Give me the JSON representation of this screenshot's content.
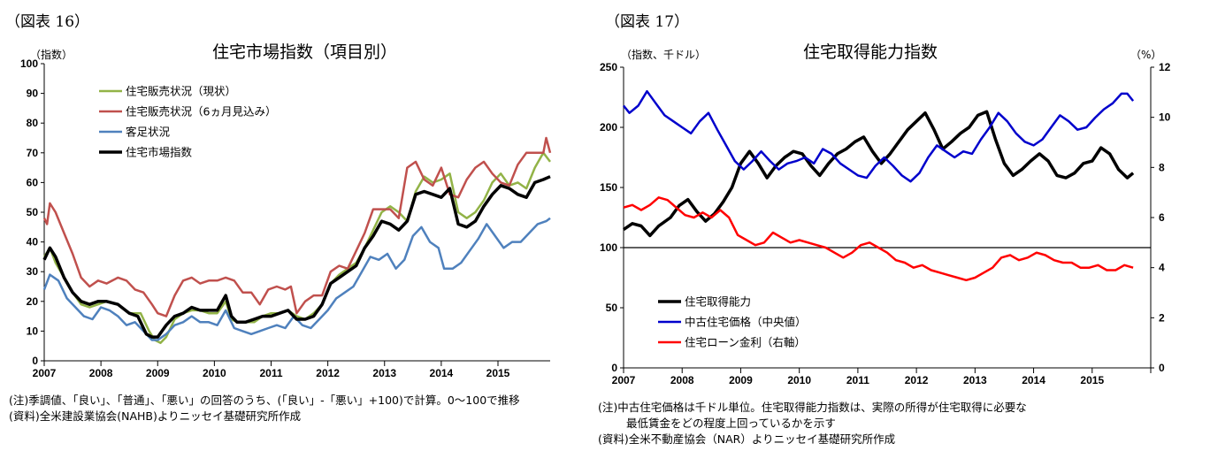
{
  "chart_data": [
    {
      "id": "fig16",
      "figure_label": "（図表 16）",
      "type": "line",
      "title": "住宅市場指数（項目別）",
      "ylabel": "（指数）",
      "ylim": [
        0,
        100
      ],
      "yticks": [
        0,
        10,
        20,
        30,
        40,
        50,
        60,
        70,
        80,
        90,
        100
      ],
      "xlim": [
        2007,
        2015.92
      ],
      "xticks": [
        "2007",
        "2008",
        "2009",
        "2010",
        "2011",
        "2012",
        "2013",
        "2014",
        "2015"
      ],
      "grid": false,
      "legend_position": "top-left",
      "series": [
        {
          "name": "住宅販売状況（現状）",
          "color": "#92b347",
          "width": 2.5,
          "x": [
            2007,
            2007.1,
            2007.2,
            2007.35,
            2007.5,
            2007.65,
            2007.8,
            2007.95,
            2008.1,
            2008.3,
            2008.5,
            2008.7,
            2008.85,
            2008.95,
            2009.05,
            2009.15,
            2009.3,
            2009.45,
            2009.6,
            2009.75,
            2009.9,
            2010.05,
            2010.2,
            2010.3,
            2010.4,
            2010.55,
            2010.7,
            2010.85,
            2011,
            2011.15,
            2011.3,
            2011.45,
            2011.6,
            2011.75,
            2011.9,
            2012.05,
            2012.2,
            2012.35,
            2012.5,
            2012.65,
            2012.8,
            2012.95,
            2013.1,
            2013.25,
            2013.4,
            2013.55,
            2013.7,
            2013.85,
            2014,
            2014.15,
            2014.3,
            2014.45,
            2014.6,
            2014.75,
            2014.9,
            2015.05,
            2015.2,
            2015.35,
            2015.5,
            2015.65,
            2015.8,
            2015.92
          ],
          "y": [
            35,
            38,
            33,
            28,
            23,
            19,
            18,
            19,
            20,
            19,
            16,
            16,
            10,
            7,
            6,
            8,
            14,
            16,
            17,
            17,
            16,
            16,
            20,
            14,
            13,
            13,
            13,
            15,
            16,
            16,
            17,
            15,
            14,
            16,
            19,
            26,
            29,
            31,
            33,
            38,
            44,
            50,
            52,
            50,
            47,
            57,
            62,
            60,
            61,
            63,
            50,
            48,
            50,
            54,
            60,
            63,
            59,
            60,
            58,
            65,
            70,
            67
          ]
        },
        {
          "name": "住宅販売状況（6ヵ月見込み）",
          "color": "#c0504d",
          "width": 2.5,
          "x": [
            2007,
            2007.05,
            2007.1,
            2007.2,
            2007.35,
            2007.5,
            2007.65,
            2007.8,
            2007.95,
            2008.1,
            2008.3,
            2008.45,
            2008.6,
            2008.75,
            2008.9,
            2009,
            2009.15,
            2009.3,
            2009.45,
            2009.6,
            2009.75,
            2009.9,
            2010.05,
            2010.2,
            2010.35,
            2010.5,
            2010.65,
            2010.8,
            2010.95,
            2011.1,
            2011.25,
            2011.35,
            2011.45,
            2011.6,
            2011.75,
            2011.9,
            2012.05,
            2012.2,
            2012.35,
            2012.5,
            2012.65,
            2012.8,
            2012.95,
            2013.1,
            2013.25,
            2013.4,
            2013.55,
            2013.7,
            2013.85,
            2014,
            2014.15,
            2014.3,
            2014.45,
            2014.6,
            2014.75,
            2014.9,
            2015.05,
            2015.2,
            2015.35,
            2015.5,
            2015.65,
            2015.8,
            2015.85,
            2015.92
          ],
          "y": [
            48,
            46,
            53,
            50,
            43,
            36,
            28,
            25,
            27,
            26,
            28,
            27,
            24,
            23,
            19,
            16,
            15,
            22,
            27,
            28,
            26,
            27,
            27,
            28,
            27,
            23,
            23,
            19,
            24,
            25,
            24,
            25,
            16,
            20,
            22,
            22,
            30,
            32,
            31,
            37,
            43,
            51,
            51,
            51,
            48,
            65,
            67,
            61,
            59,
            65,
            56,
            55,
            61,
            65,
            67,
            63,
            60,
            59,
            66,
            70,
            70,
            70,
            75,
            70
          ]
        },
        {
          "name": "客足状況",
          "color": "#4f81bd",
          "width": 2.5,
          "x": [
            2007,
            2007.1,
            2007.25,
            2007.4,
            2007.55,
            2007.7,
            2007.85,
            2008,
            2008.15,
            2008.3,
            2008.45,
            2008.6,
            2008.75,
            2008.9,
            2009,
            2009.15,
            2009.3,
            2009.45,
            2009.6,
            2009.75,
            2009.9,
            2010.05,
            2010.2,
            2010.35,
            2010.5,
            2010.65,
            2010.8,
            2010.95,
            2011.1,
            2011.25,
            2011.4,
            2011.55,
            2011.7,
            2011.85,
            2012,
            2012.15,
            2012.3,
            2012.45,
            2012.6,
            2012.75,
            2012.9,
            2013.05,
            2013.2,
            2013.35,
            2013.5,
            2013.65,
            2013.8,
            2013.95,
            2014.05,
            2014.2,
            2014.35,
            2014.5,
            2014.65,
            2014.8,
            2014.95,
            2015.1,
            2015.25,
            2015.4,
            2015.55,
            2015.7,
            2015.85,
            2015.92
          ],
          "y": [
            24,
            29,
            27,
            21,
            18,
            15,
            14,
            18,
            17,
            15,
            12,
            13,
            10,
            7,
            7,
            9,
            12,
            13,
            15,
            13,
            13,
            12,
            17,
            11,
            10,
            9,
            10,
            11,
            12,
            11,
            15,
            12,
            11,
            14,
            17,
            21,
            23,
            25,
            30,
            35,
            34,
            36,
            31,
            34,
            42,
            45,
            40,
            38,
            31,
            31,
            33,
            37,
            41,
            46,
            42,
            38,
            40,
            40,
            43,
            46,
            47,
            48
          ]
        },
        {
          "name": "住宅市場指数",
          "color": "#000000",
          "width": 3.5,
          "x": [
            2007,
            2007.1,
            2007.2,
            2007.35,
            2007.5,
            2007.65,
            2007.8,
            2007.95,
            2008.1,
            2008.3,
            2008.5,
            2008.65,
            2008.8,
            2008.9,
            2009,
            2009.15,
            2009.3,
            2009.45,
            2009.6,
            2009.75,
            2009.9,
            2010.05,
            2010.2,
            2010.3,
            2010.4,
            2010.55,
            2010.7,
            2010.85,
            2011,
            2011.15,
            2011.3,
            2011.45,
            2011.6,
            2011.75,
            2011.9,
            2012.05,
            2012.2,
            2012.35,
            2012.5,
            2012.65,
            2012.8,
            2012.95,
            2013.1,
            2013.25,
            2013.4,
            2013.55,
            2013.7,
            2013.85,
            2014,
            2014.15,
            2014.3,
            2014.45,
            2014.6,
            2014.75,
            2014.9,
            2015.05,
            2015.2,
            2015.35,
            2015.5,
            2015.65,
            2015.8,
            2015.92
          ],
          "y": [
            34,
            38,
            35,
            28,
            23,
            20,
            19,
            20,
            20,
            19,
            16,
            15,
            9,
            8,
            8,
            12,
            15,
            16,
            18,
            17,
            17,
            17,
            22,
            15,
            13,
            13,
            14,
            15,
            15,
            16,
            17,
            14,
            14,
            15,
            19,
            26,
            28,
            30,
            32,
            38,
            42,
            47,
            46,
            44,
            47,
            56,
            57,
            56,
            55,
            58,
            46,
            45,
            47,
            52,
            56,
            59,
            58,
            56,
            55,
            60,
            61,
            62
          ]
        }
      ],
      "notes": [
        "(注)季調値、「良い」、「普通」、「悪い」の回答のうち、(「良い」-「悪い」+100)で計算。0～100で推移",
        "(資料)全米建設業協会(NAHB)よりニッセイ基礎研究所作成"
      ]
    },
    {
      "id": "fig17",
      "figure_label": "（図表 17）",
      "type": "line",
      "title": "住宅取得能力指数",
      "ylabel": "（指数、千ドル）",
      "ylabel_right": "（%）",
      "ylim": [
        0,
        250
      ],
      "yticks": [
        0,
        50,
        100,
        150,
        200,
        250
      ],
      "ylim_right": [
        0,
        12
      ],
      "yticks_right": [
        0,
        2,
        4,
        6,
        8,
        10,
        12
      ],
      "xlim": [
        2007,
        2016
      ],
      "xticks": [
        "2007",
        "2008",
        "2009",
        "2010",
        "2011",
        "2012",
        "2013",
        "2014",
        "2015"
      ],
      "reference_line_y": 100,
      "grid": false,
      "legend_position": "bottom-left",
      "series": [
        {
          "name": "住宅取得能力",
          "color": "#000000",
          "width": 3.5,
          "axis": "left",
          "x": [
            2007,
            2007.15,
            2007.3,
            2007.45,
            2007.6,
            2007.8,
            2007.95,
            2008.1,
            2008.25,
            2008.4,
            2008.55,
            2008.7,
            2008.85,
            2009,
            2009.15,
            2009.3,
            2009.45,
            2009.6,
            2009.75,
            2009.9,
            2010.05,
            2010.2,
            2010.35,
            2010.5,
            2010.65,
            2010.8,
            2010.95,
            2011.1,
            2011.25,
            2011.4,
            2011.55,
            2011.7,
            2011.85,
            2012,
            2012.15,
            2012.3,
            2012.45,
            2012.6,
            2012.75,
            2012.9,
            2013.05,
            2013.2,
            2013.35,
            2013.5,
            2013.65,
            2013.8,
            2013.95,
            2014.1,
            2014.25,
            2014.4,
            2014.55,
            2014.7,
            2014.85,
            2015,
            2015.15,
            2015.3,
            2015.45,
            2015.6,
            2015.7
          ],
          "y": [
            115,
            120,
            118,
            110,
            118,
            125,
            135,
            140,
            130,
            122,
            128,
            138,
            150,
            170,
            180,
            170,
            158,
            168,
            175,
            180,
            178,
            168,
            160,
            170,
            178,
            182,
            188,
            192,
            180,
            170,
            178,
            188,
            198,
            205,
            212,
            198,
            182,
            188,
            195,
            200,
            210,
            213,
            190,
            170,
            160,
            165,
            172,
            178,
            172,
            160,
            158,
            162,
            170,
            172,
            183,
            178,
            165,
            158,
            162
          ]
        },
        {
          "name": "中古住宅価格（中央値）",
          "color": "#0000cc",
          "width": 2.5,
          "axis": "left",
          "x": [
            2007,
            2007.1,
            2007.25,
            2007.4,
            2007.55,
            2007.7,
            2007.85,
            2008,
            2008.15,
            2008.3,
            2008.45,
            2008.6,
            2008.75,
            2008.9,
            2009.05,
            2009.2,
            2009.35,
            2009.5,
            2009.65,
            2009.8,
            2009.95,
            2010.1,
            2010.25,
            2010.4,
            2010.55,
            2010.7,
            2010.85,
            2011,
            2011.15,
            2011.3,
            2011.45,
            2011.6,
            2011.75,
            2011.9,
            2012.05,
            2012.2,
            2012.35,
            2012.5,
            2012.65,
            2012.8,
            2012.95,
            2013.1,
            2013.25,
            2013.4,
            2013.55,
            2013.7,
            2013.85,
            2014,
            2014.15,
            2014.3,
            2014.45,
            2014.6,
            2014.75,
            2014.9,
            2015.05,
            2015.2,
            2015.35,
            2015.5,
            2015.6,
            2015.7
          ],
          "y": [
            218,
            212,
            218,
            230,
            220,
            210,
            205,
            200,
            195,
            205,
            212,
            198,
            185,
            172,
            165,
            172,
            180,
            172,
            165,
            170,
            172,
            175,
            170,
            182,
            178,
            170,
            165,
            160,
            158,
            168,
            175,
            168,
            160,
            155,
            162,
            175,
            185,
            180,
            175,
            180,
            178,
            190,
            200,
            212,
            205,
            195,
            188,
            185,
            190,
            200,
            210,
            205,
            198,
            200,
            208,
            215,
            220,
            228,
            228,
            222
          ]
        },
        {
          "name": "住宅ローン金利（右軸）",
          "color": "#ff0000",
          "width": 2.5,
          "axis": "right",
          "x": [
            2007,
            2007.15,
            2007.3,
            2007.45,
            2007.6,
            2007.75,
            2007.9,
            2008.05,
            2008.2,
            2008.35,
            2008.5,
            2008.65,
            2008.8,
            2008.95,
            2009.1,
            2009.25,
            2009.4,
            2009.55,
            2009.7,
            2009.85,
            2010,
            2010.15,
            2010.3,
            2010.45,
            2010.6,
            2010.75,
            2010.9,
            2011.05,
            2011.2,
            2011.35,
            2011.5,
            2011.65,
            2011.8,
            2011.95,
            2012.1,
            2012.25,
            2012.4,
            2012.55,
            2012.7,
            2012.85,
            2013,
            2013.15,
            2013.3,
            2013.45,
            2013.6,
            2013.75,
            2013.9,
            2014.05,
            2014.2,
            2014.35,
            2014.5,
            2014.65,
            2014.8,
            2014.95,
            2015.1,
            2015.25,
            2015.4,
            2015.55,
            2015.7
          ],
          "y": [
            6.4,
            6.5,
            6.3,
            6.5,
            6.8,
            6.7,
            6.4,
            6.1,
            6.0,
            6.2,
            6.0,
            6.3,
            6.0,
            5.3,
            5.1,
            4.9,
            5.0,
            5.4,
            5.2,
            5.0,
            5.1,
            5.0,
            4.9,
            4.8,
            4.6,
            4.4,
            4.6,
            4.9,
            5.0,
            4.8,
            4.6,
            4.3,
            4.2,
            4.0,
            4.1,
            3.9,
            3.8,
            3.7,
            3.6,
            3.5,
            3.6,
            3.8,
            4.0,
            4.4,
            4.5,
            4.3,
            4.4,
            4.6,
            4.5,
            4.3,
            4.2,
            4.2,
            4.0,
            4.0,
            4.1,
            3.9,
            3.9,
            4.1,
            4.0
          ]
        }
      ],
      "notes": [
        "(注)中古住宅価格は千ドル単位。住宅取得能力指数は、実際の所得が住宅取得に必要な",
        "最低賃金をどの程度上回っているかを示す",
        "(資料)全米不動産協会（NAR）よりニッセイ基礎研究所作成"
      ]
    }
  ]
}
